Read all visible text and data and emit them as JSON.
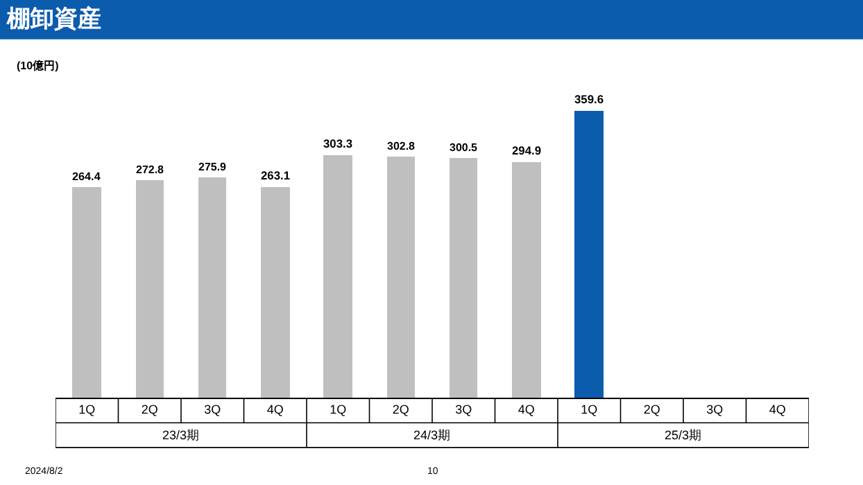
{
  "chart_data": {
    "type": "bar",
    "title": "棚卸資産",
    "ylabel": "(10億円)",
    "categories": [
      "1Q",
      "2Q",
      "3Q",
      "4Q",
      "1Q",
      "2Q",
      "3Q",
      "4Q",
      "1Q",
      "2Q",
      "3Q",
      "4Q"
    ],
    "values": [
      264.4,
      272.8,
      275.9,
      263.1,
      303.3,
      302.8,
      300.5,
      294.9,
      359.6,
      null,
      null,
      null
    ],
    "colors": [
      "#bfbfbf",
      "#bfbfbf",
      "#bfbfbf",
      "#bfbfbf",
      "#bfbfbf",
      "#bfbfbf",
      "#bfbfbf",
      "#bfbfbf",
      "#0b5cad",
      "#bfbfbf",
      "#bfbfbf",
      "#bfbfbf"
    ],
    "data_labels": true,
    "legend": false,
    "annotations": [
      "23/3期",
      "24/3期",
      "25/3期",
      "2024/8/2",
      "10"
    ]
  }
}
